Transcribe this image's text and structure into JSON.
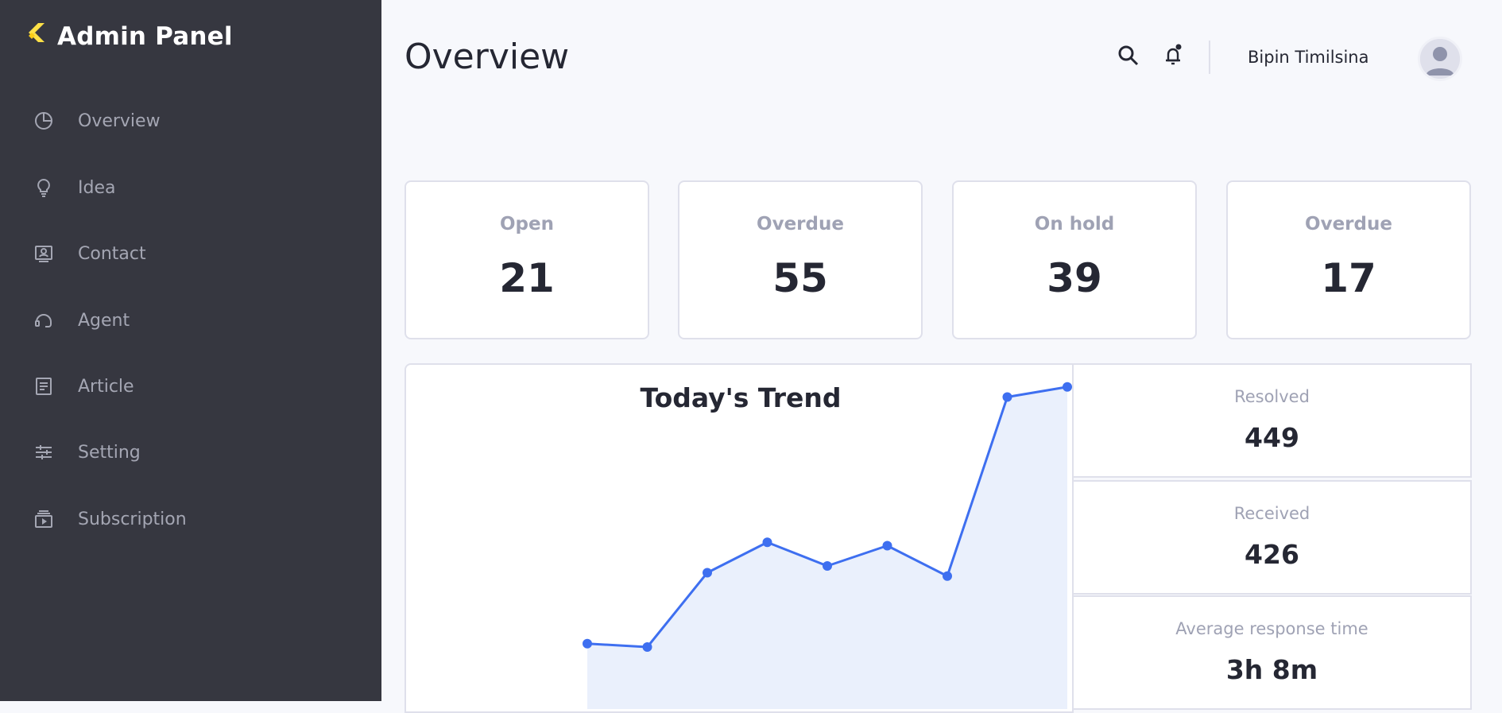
{
  "app": {
    "title": "Admin Panel"
  },
  "sidebar": {
    "items": [
      {
        "label": "Overview",
        "icon": "pie-chart-icon"
      },
      {
        "label": "Idea",
        "icon": "lightbulb-icon"
      },
      {
        "label": "Contact",
        "icon": "contact-card-icon"
      },
      {
        "label": "Agent",
        "icon": "headset-icon"
      },
      {
        "label": "Article",
        "icon": "article-icon"
      },
      {
        "label": "Setting",
        "icon": "sliders-icon"
      },
      {
        "label": "Subscription",
        "icon": "subscription-icon"
      }
    ]
  },
  "header": {
    "title": "Overview",
    "user_name": "Bipin Timilsina"
  },
  "stats": [
    {
      "label": "Open",
      "value": "21"
    },
    {
      "label": "Overdue",
      "value": "55"
    },
    {
      "label": "On hold",
      "value": "39"
    },
    {
      "label": "Overdue",
      "value": "17"
    }
  ],
  "trend": {
    "title": "Today's Trend"
  },
  "side_stats": [
    {
      "label": "Resolved",
      "value": "449"
    },
    {
      "label": "Received",
      "value": "426"
    },
    {
      "label": "Average response time",
      "value": "3h 8m"
    }
  ],
  "colors": {
    "sidebar_bg": "#363740",
    "brand_accent": "#fde047",
    "line": "#3e6ff0",
    "area_fill": "#eaf0fc"
  },
  "chart_data": {
    "type": "area",
    "title": "Today's Trend",
    "x": [
      1,
      2,
      3,
      4,
      5,
      6,
      7,
      8,
      9
    ],
    "values": [
      17,
      16,
      38,
      47,
      40,
      46,
      37,
      90,
      93
    ],
    "ylim": [
      0,
      100
    ],
    "grid": false,
    "legend": "none"
  }
}
